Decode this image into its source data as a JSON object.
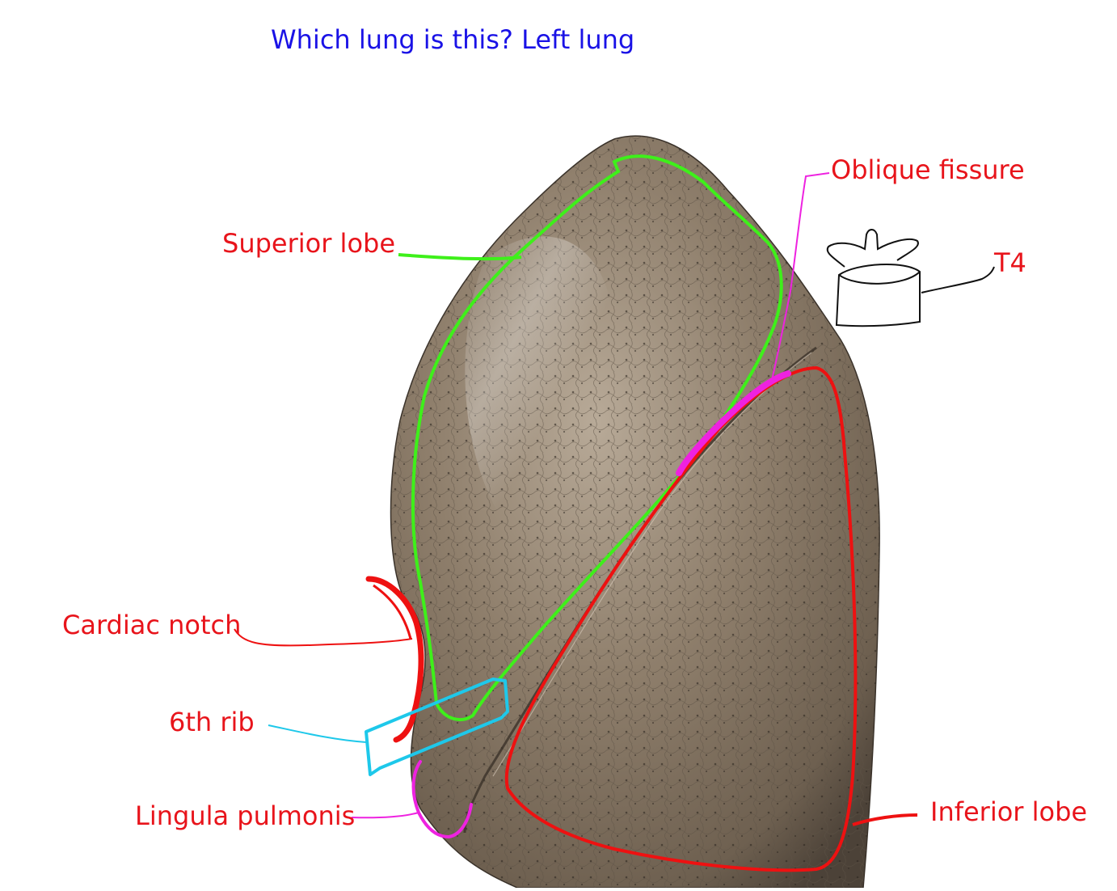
{
  "question": "Which lung is this? Left lung",
  "labels": {
    "superior_lobe": "Superior lobe",
    "oblique_fissure": "Oblique fissure",
    "t4": "T4",
    "cardiac_notch": "Cardiac notch",
    "sixth_rib": "6th rib",
    "lingula": "Lingula pulmonis",
    "inferior_lobe": "Inferior lobe"
  },
  "colors": {
    "question": "#1a12e6",
    "label": "#e8141b",
    "superior_outline": "#3ef01a",
    "inferior_outline": "#ee1111",
    "fissure_marker": "#ee22e0",
    "rib_outline": "#1ec8ea",
    "vertebra": "#111111",
    "lung_tissue": "#8a7a68"
  }
}
